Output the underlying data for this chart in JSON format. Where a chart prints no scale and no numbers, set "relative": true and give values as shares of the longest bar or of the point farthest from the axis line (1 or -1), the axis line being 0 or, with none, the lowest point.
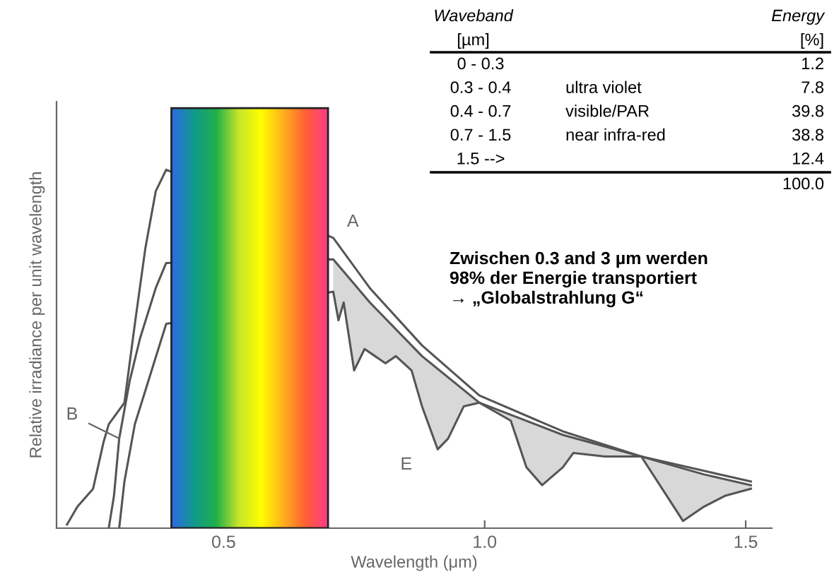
{
  "chart_data": [
    {
      "type": "line",
      "xlabel": "Wavelength (μm)",
      "ylabel": "Relative irradiance per unit wavelength",
      "relative": true,
      "xlim": [
        0.18,
        1.55
      ],
      "xticks": [
        0.5,
        {
          "value": 1.0,
          "label": "1.0"
        },
        1.5
      ],
      "grid": false,
      "legend": false,
      "marker": "none",
      "line_style": "solid",
      "series": [
        {
          "name": "A",
          "color": "#555555",
          "x": [
            0.2,
            0.22,
            0.25,
            0.27,
            0.28,
            0.31,
            0.33,
            0.35,
            0.37,
            0.39,
            0.71,
            0.78,
            0.88,
            0.99,
            1.15,
            1.3,
            1.42,
            1.51
          ],
          "values": [
            0.01,
            0.06,
            0.11,
            0.24,
            0.29,
            0.35,
            0.57,
            0.78,
            0.94,
            1.0,
            0.81,
            0.67,
            0.51,
            0.37,
            0.27,
            0.2,
            0.16,
            0.13
          ]
        },
        {
          "name": "B",
          "color": "#555555",
          "x": [
            0.28,
            0.29,
            0.3,
            0.32,
            0.34,
            0.37,
            0.39,
            0.71,
            0.78,
            0.88,
            0.99,
            1.15,
            1.3,
            1.42,
            1.51
          ],
          "values": [
            0,
            0.09,
            0.25,
            0.41,
            0.53,
            0.67,
            0.74,
            0.75,
            0.63,
            0.48,
            0.35,
            0.26,
            0.2,
            0.15,
            0.12
          ]
        },
        {
          "name": "E",
          "color": "#555555",
          "x": [
            0.3,
            0.31,
            0.33,
            0.36,
            0.39,
            0.71,
            0.72,
            0.73,
            0.75,
            0.77,
            0.79,
            0.81,
            0.83,
            0.86,
            0.88,
            0.91,
            0.93,
            0.96,
            0.99,
            1.05,
            1.08,
            1.11,
            1.15,
            1.17,
            1.23,
            1.3,
            1.34,
            1.38,
            1.42,
            1.46,
            1.51
          ],
          "values": [
            0,
            0.13,
            0.29,
            0.43,
            0.57,
            0.66,
            0.58,
            0.63,
            0.44,
            0.5,
            0.48,
            0.46,
            0.48,
            0.44,
            0.34,
            0.22,
            0.25,
            0.34,
            0.35,
            0.3,
            0.17,
            0.12,
            0.17,
            0.21,
            0.2,
            0.2,
            0.11,
            0.02,
            0.06,
            0.09,
            0.11
          ]
        }
      ],
      "bands": [
        {
          "axis": "x",
          "from": 0.4,
          "to": 0.7
        }
      ],
      "annotations": [
        "Zwischen 0.3 and 3 µm werden\n98% der Energie transportiert\n→ „Globalstrahlung G“"
      ]
    },
    {
      "type": "other",
      "annotations": [
        "Waveband",
        "Energy",
        "[µm]",
        "[%]",
        "0 - 0.3",
        null,
        "1.2",
        "0.3 - 0.4",
        "ultra violet",
        "7.8",
        "0.4 - 0.7",
        "visible/PAR",
        "39.8",
        "0.7 - 1.5",
        "near infra-red",
        "38.8",
        "1.5 -->",
        null,
        "12.4",
        "100.0"
      ]
    }
  ]
}
